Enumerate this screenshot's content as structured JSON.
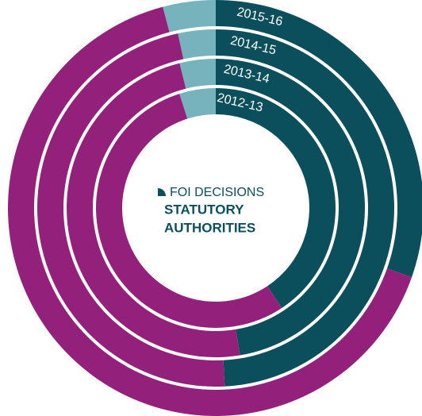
{
  "chart_data": {
    "type": "donut",
    "title": [
      "FOI DECISIONS",
      "STATUTORY",
      "AUTHORITIES"
    ],
    "colors": [
      "#0b4f5c",
      "#93207a",
      "#76b3bd"
    ],
    "rings": [
      {
        "label": "2015-16",
        "values": [
          30.4,
          65.5,
          4.1
        ]
      },
      {
        "label": "2014-15",
        "values": [
          49.2,
          47.4,
          3.4
        ]
      },
      {
        "label": "2013-14",
        "values": [
          47.4,
          48.7,
          3.9
        ]
      },
      {
        "label": "2012-13",
        "values": [
          40.7,
          54.4,
          4.9
        ]
      }
    ]
  }
}
